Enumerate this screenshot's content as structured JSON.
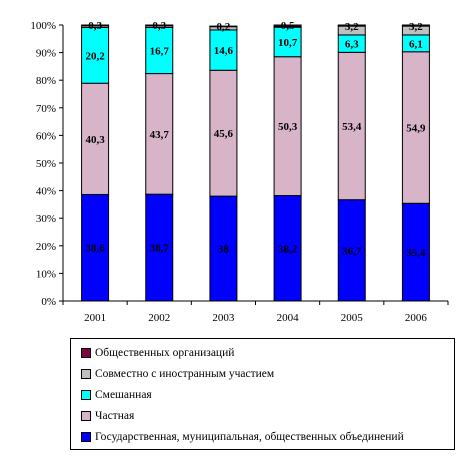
{
  "chart_data": {
    "type": "bar",
    "stacked": true,
    "categories": [
      "2001",
      "2002",
      "2003",
      "2004",
      "2005",
      "2006"
    ],
    "y_ticks": [
      "0%",
      "10%",
      "20%",
      "30%",
      "40%",
      "50%",
      "60%",
      "70%",
      "80%",
      "90%",
      "100%"
    ],
    "ylim": [
      0,
      100
    ],
    "grid": false,
    "legend_position": "bottom",
    "series": [
      {
        "name": "Государственная, муниципальная, общественных объединений",
        "color": "#0000ff",
        "values": [
          38.6,
          38.7,
          38,
          38.2,
          36.7,
          35.4
        ],
        "labels": [
          "38,6",
          "38,7",
          "38",
          "38,2",
          "36,7",
          "35,4"
        ]
      },
      {
        "name": "Частная",
        "color": "#d8b4c8",
        "values": [
          40.3,
          43.7,
          45.6,
          50.3,
          53.4,
          54.9
        ],
        "labels": [
          "40,3",
          "43,7",
          "45,6",
          "50,3",
          "53,4",
          "54,9"
        ]
      },
      {
        "name": "Смешанная",
        "color": "#00ffff",
        "values": [
          20.2,
          16.7,
          14.6,
          10.7,
          6.3,
          6.1
        ],
        "labels": [
          "20,2",
          "16,7",
          "14,6",
          "10,7",
          "6,3",
          "6,1"
        ]
      },
      {
        "name": "Совместно с иностранным участием",
        "color": "#c0c0c0",
        "values": [
          0.6,
          0.6,
          1.2,
          0.3,
          3.2,
          3.2
        ],
        "labels": [
          "",
          "",
          "",
          "",
          "3,2",
          "3,2"
        ]
      },
      {
        "name": "Общественных организаций",
        "color": "#800040",
        "values": [
          0.3,
          0.3,
          0.2,
          0.5,
          0.4,
          0.4
        ],
        "labels": [
          "0,3",
          "0,3",
          "0,2",
          "0,5",
          "",
          ""
        ]
      }
    ],
    "legend_order": [
      4,
      3,
      2,
      1,
      0
    ]
  }
}
